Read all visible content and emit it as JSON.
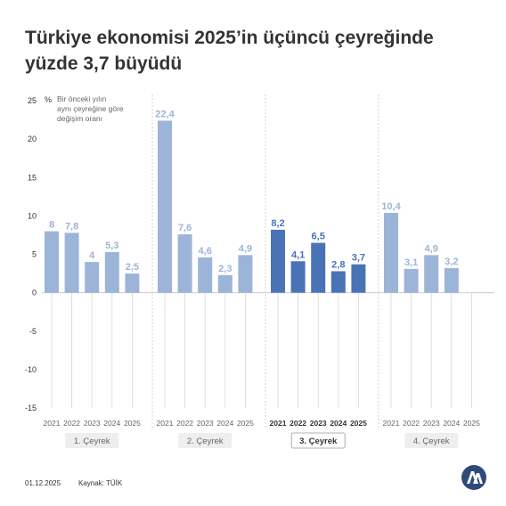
{
  "title": "Türkiye ekonomisi 2025’in üçüncü çeyreğinde yüzde 3,7 büyüdü",
  "footer": {
    "date": "01.12.2025",
    "source": "Kaynak: TÜİK"
  },
  "colors": {
    "bar": "#9db4d9",
    "bar_highlight": "#4a73b7",
    "label": "#9db4d9",
    "label_highlight": "#4a73b7",
    "text": "#333333",
    "muted": "#666666"
  },
  "logo": "anadolu-agency-logo",
  "chart_data": {
    "type": "bar",
    "unit_label": "%",
    "note": [
      "Bir önceki yılın",
      "aynı çeyreğine göre",
      "değişim oranı"
    ],
    "ylim": [
      -15,
      25
    ],
    "yticks": [
      "25",
      "20",
      "15",
      "10",
      "5",
      "0",
      "-5",
      "-10",
      "-15"
    ],
    "grid": false,
    "highlight_group": 2,
    "groups": [
      {
        "name": "1. Çeyrek",
        "years": [
          "2021",
          "2022",
          "2023",
          "2024",
          "2025"
        ],
        "values": [
          8,
          7.8,
          4,
          5.3,
          2.5
        ],
        "labels": [
          "8",
          "7,8",
          "4",
          "5,3",
          "2,5"
        ]
      },
      {
        "name": "2. Çeyrek",
        "years": [
          "2021",
          "2022",
          "2023",
          "2024",
          "2025"
        ],
        "values": [
          22.4,
          7.6,
          4.6,
          2.3,
          4.9
        ],
        "labels": [
          "22,4",
          "7,6",
          "4,6",
          "2,3",
          "4,9"
        ]
      },
      {
        "name": "3. Çeyrek",
        "years": [
          "2021",
          "2022",
          "2023",
          "2024",
          "2025"
        ],
        "values": [
          8.2,
          4.1,
          6.5,
          2.8,
          3.7
        ],
        "labels": [
          "8,2",
          "4,1",
          "6,5",
          "2,8",
          "3,7"
        ]
      },
      {
        "name": "4. Çeyrek",
        "years": [
          "2021",
          "2022",
          "2023",
          "2024",
          "2025"
        ],
        "values": [
          10.4,
          3.1,
          4.9,
          3.2,
          null
        ],
        "labels": [
          "10,4",
          "3,1",
          "4,9",
          "3,2",
          ""
        ]
      }
    ]
  }
}
